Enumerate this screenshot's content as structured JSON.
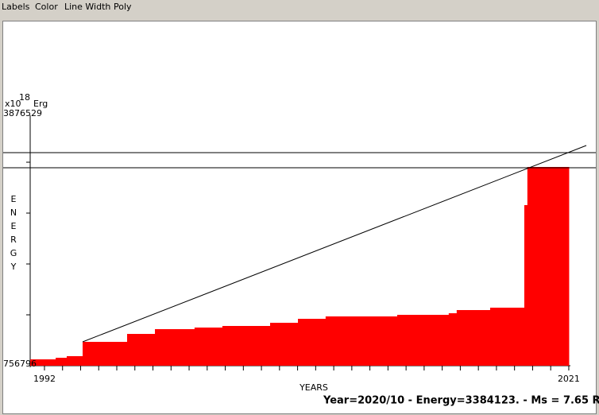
{
  "menu": [
    "Labels",
    "Color",
    "Line Width",
    "Poly"
  ],
  "status": "Year=2020/10 - Energy=3384123. - Ms = 7.65 R",
  "chart_data": {
    "type": "step",
    "unit_prefix": "x10",
    "unit_exponent": "18",
    "unit": "Erg",
    "ylabel": "ENERGY",
    "xlabel": "YEARS",
    "color": "#ff0000",
    "x": [
      1991.21,
      1992.62,
      1993.23,
      1994.11,
      1996.57,
      1998.11,
      2000.3,
      2001.84,
      2004.48,
      2006.02,
      2007.55,
      2011.51,
      2014.36,
      2014.8,
      2016.65,
      2018.54,
      2018.71
    ],
    "x_end": 2021.0,
    "values": [
      836000,
      855800,
      875600,
      1053900,
      1152900,
      1212400,
      1232200,
      1252000,
      1291600,
      1341100,
      1370800,
      1390600,
      1410500,
      1450000,
      1479800,
      2757500,
      3232700
    ],
    "trend": {
      "x": [
        1994.11,
        2021.97
      ],
      "values": [
        1053900,
        3500200
      ]
    },
    "hlines": [
      3411100,
      3222900
    ],
    "xlim": [
      1991.21,
      2021.09
    ],
    "ylim": [
      756796,
      3876529
    ],
    "xticks": [
      1992,
      2021
    ],
    "minor_xticks": [
      1993,
      1994,
      1995,
      1996,
      1997,
      1998,
      1999,
      2000,
      2001,
      2002,
      2003,
      2004,
      2005,
      2006,
      2007,
      2008,
      2009,
      2010,
      2011,
      2012,
      2013,
      2014,
      2015,
      2016,
      2017,
      2018,
      2019,
      2020
    ],
    "yticks": [
      756796,
      3876529
    ],
    "minor_yticks": [
      1390566,
      2024336,
      2658106,
      3291876
    ]
  }
}
